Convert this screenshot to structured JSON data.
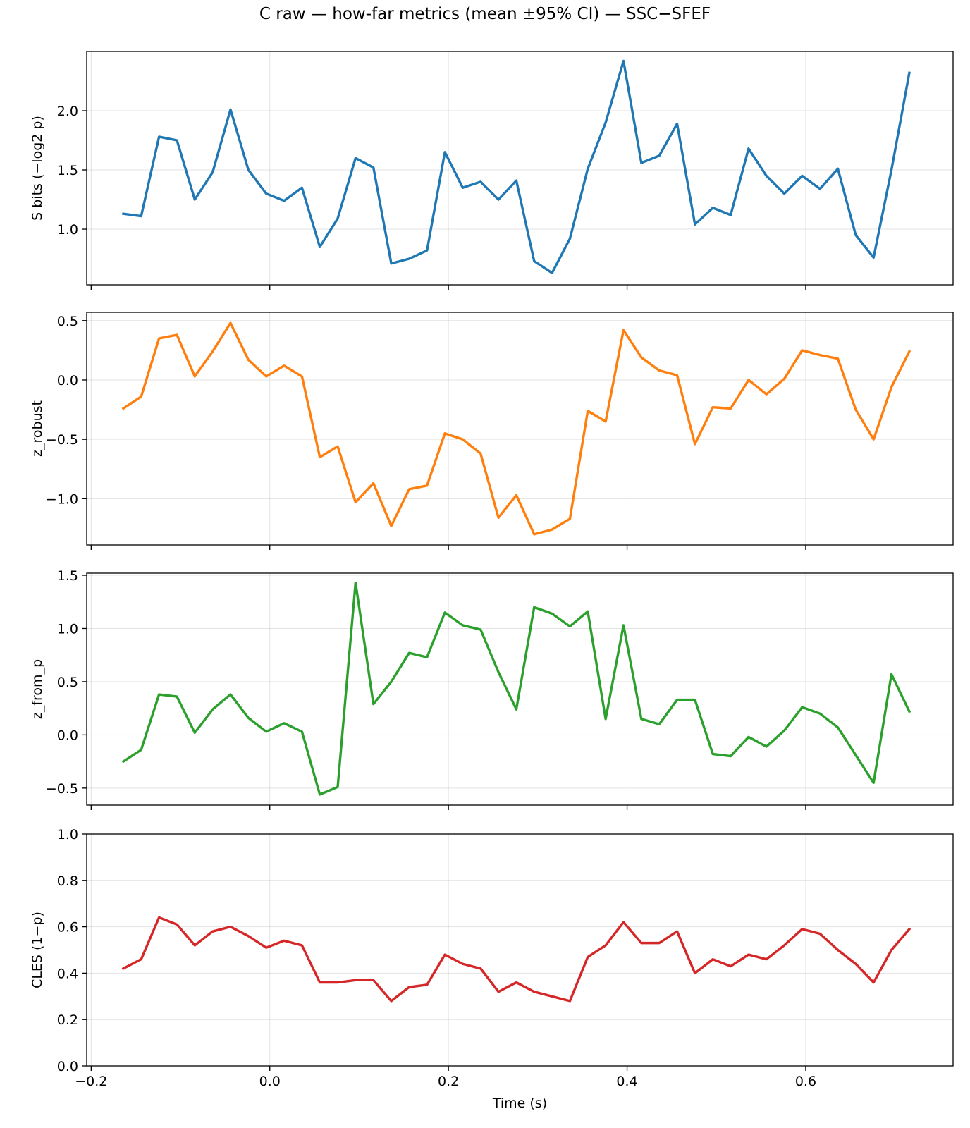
{
  "figure": {
    "title": "C raw — how-far metrics (mean ±95% CI) — SSC−SFEF"
  },
  "chart_data": [
    {
      "type": "line",
      "ylabel": "S bits (−log2 p)",
      "xlabel": "",
      "color": "#1f77b4",
      "xlim": [
        -0.205,
        0.765
      ],
      "ylim": [
        0.53,
        2.5
      ],
      "xticks": [
        -0.2,
        0.0,
        0.2,
        0.4,
        0.6
      ],
      "xtick_labels": [],
      "yticks": [
        1.0,
        1.5,
        2.0
      ],
      "ytick_labels": [
        "1.0",
        "1.5",
        "2.0"
      ],
      "grid": true,
      "x": [
        -0.164,
        -0.144,
        -0.124,
        -0.104,
        -0.084,
        -0.064,
        -0.044,
        -0.024,
        -0.004,
        0.016,
        0.036,
        0.056,
        0.076,
        0.096,
        0.116,
        0.136,
        0.156,
        0.176,
        0.196,
        0.216,
        0.236,
        0.256,
        0.276,
        0.296,
        0.316,
        0.336,
        0.356,
        0.376,
        0.396,
        0.416,
        0.436,
        0.456,
        0.476,
        0.496,
        0.516,
        0.536,
        0.556,
        0.576,
        0.596,
        0.616,
        0.636,
        0.656,
        0.676,
        0.696,
        0.716
      ],
      "values": [
        1.13,
        1.11,
        1.78,
        1.75,
        1.25,
        1.48,
        2.01,
        1.5,
        1.3,
        1.24,
        1.35,
        0.85,
        1.09,
        1.6,
        1.52,
        0.71,
        0.75,
        0.82,
        1.65,
        1.35,
        1.4,
        1.25,
        1.41,
        0.73,
        0.63,
        0.92,
        1.51,
        1.9,
        2.42,
        1.56,
        1.62,
        1.89,
        1.04,
        1.18,
        1.12,
        1.68,
        1.45,
        1.3,
        1.45,
        1.34,
        1.51,
        0.95,
        0.76,
        1.5,
        2.32
      ]
    },
    {
      "type": "line",
      "ylabel": "z_robust",
      "xlabel": "",
      "color": "#ff7f0e",
      "xlim": [
        -0.205,
        0.765
      ],
      "ylim": [
        -1.39,
        0.57
      ],
      "xticks": [
        -0.2,
        0.0,
        0.2,
        0.4,
        0.6
      ],
      "xtick_labels": [],
      "yticks": [
        -1.0,
        -0.5,
        0.0,
        0.5
      ],
      "ytick_labels": [
        "−1.0",
        "−0.5",
        "0.0",
        "0.5"
      ],
      "grid": true,
      "x": [
        -0.164,
        -0.144,
        -0.124,
        -0.104,
        -0.084,
        -0.064,
        -0.044,
        -0.024,
        -0.004,
        0.016,
        0.036,
        0.056,
        0.076,
        0.096,
        0.116,
        0.136,
        0.156,
        0.176,
        0.196,
        0.216,
        0.236,
        0.256,
        0.276,
        0.296,
        0.316,
        0.336,
        0.356,
        0.376,
        0.396,
        0.416,
        0.436,
        0.456,
        0.476,
        0.496,
        0.516,
        0.536,
        0.556,
        0.576,
        0.596,
        0.616,
        0.636,
        0.656,
        0.676,
        0.696,
        0.716
      ],
      "values": [
        -0.24,
        -0.14,
        0.35,
        0.38,
        0.03,
        0.24,
        0.48,
        0.17,
        0.03,
        0.12,
        0.03,
        -0.65,
        -0.56,
        -1.03,
        -0.87,
        -1.23,
        -0.92,
        -0.89,
        -0.45,
        -0.5,
        -0.62,
        -1.16,
        -0.97,
        -1.3,
        -1.26,
        -1.17,
        -0.26,
        -0.35,
        0.42,
        0.19,
        0.08,
        0.04,
        -0.54,
        -0.23,
        -0.24,
        0.0,
        -0.12,
        0.01,
        0.25,
        0.21,
        0.18,
        -0.25,
        -0.5,
        -0.06,
        0.24
      ]
    },
    {
      "type": "line",
      "ylabel": "z_from_p",
      "xlabel": "",
      "color": "#2ca02c",
      "xlim": [
        -0.205,
        0.765
      ],
      "ylim": [
        -0.66,
        1.52
      ],
      "xticks": [
        -0.2,
        0.0,
        0.2,
        0.4,
        0.6
      ],
      "xtick_labels": [],
      "yticks": [
        -0.5,
        0.0,
        0.5,
        1.0,
        1.5
      ],
      "ytick_labels": [
        "−0.5",
        "0.0",
        "0.5",
        "1.0",
        "1.5"
      ],
      "grid": true,
      "x": [
        -0.164,
        -0.144,
        -0.124,
        -0.104,
        -0.084,
        -0.064,
        -0.044,
        -0.024,
        -0.004,
        0.016,
        0.036,
        0.056,
        0.076,
        0.096,
        0.116,
        0.136,
        0.156,
        0.176,
        0.196,
        0.216,
        0.236,
        0.256,
        0.276,
        0.296,
        0.316,
        0.336,
        0.356,
        0.376,
        0.396,
        0.416,
        0.436,
        0.456,
        0.476,
        0.496,
        0.516,
        0.536,
        0.556,
        0.576,
        0.596,
        0.616,
        0.636,
        0.656,
        0.676,
        0.696,
        0.716
      ],
      "values": [
        -0.25,
        -0.14,
        0.38,
        0.36,
        0.02,
        0.24,
        0.38,
        0.16,
        0.03,
        0.11,
        0.03,
        -0.56,
        -0.49,
        1.43,
        0.29,
        0.5,
        0.77,
        0.73,
        1.15,
        1.03,
        0.99,
        0.59,
        0.24,
        1.2,
        1.14,
        1.02,
        1.16,
        0.15,
        1.03,
        0.15,
        0.1,
        0.33,
        0.33,
        -0.18,
        -0.2,
        -0.02,
        -0.11,
        0.04,
        0.26,
        0.2,
        0.07,
        -0.19,
        -0.45,
        0.57,
        0.22
      ]
    },
    {
      "type": "line",
      "ylabel": "CLES (1−p)",
      "xlabel": "Time (s)",
      "color": "#d62728",
      "xlim": [
        -0.205,
        0.765
      ],
      "ylim": [
        0.0,
        1.0
      ],
      "xticks": [
        -0.2,
        0.0,
        0.2,
        0.4,
        0.6
      ],
      "xtick_labels": [
        "−0.2",
        "0.0",
        "0.2",
        "0.4",
        "0.6"
      ],
      "yticks": [
        0.0,
        0.2,
        0.4,
        0.6,
        0.8,
        1.0
      ],
      "ytick_labels": [
        "0.0",
        "0.2",
        "0.4",
        "0.6",
        "0.8",
        "1.0"
      ],
      "grid": true,
      "x": [
        -0.164,
        -0.144,
        -0.124,
        -0.104,
        -0.084,
        -0.064,
        -0.044,
        -0.024,
        -0.004,
        0.016,
        0.036,
        0.056,
        0.076,
        0.096,
        0.116,
        0.136,
        0.156,
        0.176,
        0.196,
        0.216,
        0.236,
        0.256,
        0.276,
        0.296,
        0.316,
        0.336,
        0.356,
        0.376,
        0.396,
        0.416,
        0.436,
        0.456,
        0.476,
        0.496,
        0.516,
        0.536,
        0.556,
        0.576,
        0.596,
        0.616,
        0.636,
        0.656,
        0.676,
        0.696,
        0.716
      ],
      "values": [
        0.42,
        0.46,
        0.64,
        0.61,
        0.52,
        0.58,
        0.6,
        0.56,
        0.51,
        0.54,
        0.52,
        0.36,
        0.36,
        0.37,
        0.37,
        0.28,
        0.34,
        0.35,
        0.48,
        0.44,
        0.42,
        0.32,
        0.36,
        0.32,
        0.3,
        0.28,
        0.47,
        0.52,
        0.62,
        0.53,
        0.53,
        0.58,
        0.4,
        0.46,
        0.43,
        0.48,
        0.46,
        0.52,
        0.59,
        0.57,
        0.5,
        0.44,
        0.36,
        0.5,
        0.59
      ]
    }
  ]
}
